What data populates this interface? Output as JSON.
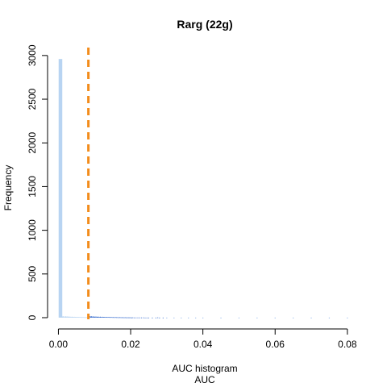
{
  "chart_data": {
    "type": "bar",
    "title": "Rarg (22g)",
    "xlabel": "AUC histogram",
    "xlabel2": "AUC",
    "ylabel": "Frequency",
    "xlim": [
      -0.003,
      0.0845
    ],
    "ylim": [
      0,
      3100
    ],
    "x_ticks": [
      0.0,
      0.02,
      0.04,
      0.06,
      0.08
    ],
    "x_tick_labels": [
      "0.00",
      "0.02",
      "0.04",
      "0.06",
      "0.08"
    ],
    "y_ticks": [
      0,
      500,
      1000,
      1500,
      2000,
      2500,
      3000
    ],
    "y_tick_labels": [
      "0",
      "500",
      "1000",
      "1500",
      "2000",
      "2500",
      "3000"
    ],
    "grid": false,
    "threshold": {
      "x": 0.0083,
      "color": "#f28c1c",
      "style": "dashed"
    },
    "colors": {
      "light_bar": "#b8d4f2",
      "dark_bar": "#3a6fd0",
      "low_bar": "#7aa6e6"
    },
    "bin_width": 0.00025,
    "bins": [
      [
        0.0002,
        2960
      ],
      [
        0.0005,
        15
      ],
      [
        0.0008,
        18
      ],
      [
        0.0011,
        14
      ],
      [
        0.0014,
        16
      ],
      [
        0.0017,
        12
      ],
      [
        0.002,
        15
      ],
      [
        0.0023,
        13
      ],
      [
        0.0026,
        14
      ],
      [
        0.0029,
        11
      ],
      [
        0.0032,
        12
      ],
      [
        0.0035,
        10
      ],
      [
        0.0038,
        11
      ],
      [
        0.0041,
        9
      ],
      [
        0.0044,
        10
      ],
      [
        0.0047,
        8
      ],
      [
        0.005,
        9
      ],
      [
        0.0053,
        8
      ],
      [
        0.0056,
        7
      ],
      [
        0.0059,
        8
      ],
      [
        0.0062,
        7
      ],
      [
        0.0065,
        6
      ],
      [
        0.0068,
        7
      ],
      [
        0.0071,
        6
      ],
      [
        0.0074,
        5
      ],
      [
        0.0077,
        6
      ],
      [
        0.008,
        5
      ],
      [
        0.0086,
        18
      ],
      [
        0.0089,
        14
      ],
      [
        0.0092,
        16
      ],
      [
        0.0095,
        12
      ],
      [
        0.0098,
        14
      ],
      [
        0.0101,
        11
      ],
      [
        0.0104,
        13
      ],
      [
        0.0107,
        10
      ],
      [
        0.011,
        12
      ],
      [
        0.0113,
        9
      ],
      [
        0.0116,
        11
      ],
      [
        0.0119,
        8
      ],
      [
        0.0122,
        10
      ],
      [
        0.0125,
        8
      ],
      [
        0.0128,
        9
      ],
      [
        0.0131,
        7
      ],
      [
        0.0134,
        8
      ],
      [
        0.0137,
        7
      ],
      [
        0.014,
        8
      ],
      [
        0.0143,
        6
      ],
      [
        0.0146,
        7
      ],
      [
        0.0149,
        6
      ],
      [
        0.0152,
        6
      ],
      [
        0.0155,
        5
      ],
      [
        0.0158,
        6
      ],
      [
        0.0161,
        5
      ],
      [
        0.0164,
        5
      ],
      [
        0.0167,
        4
      ],
      [
        0.017,
        5
      ],
      [
        0.0173,
        4
      ],
      [
        0.0176,
        4
      ],
      [
        0.0179,
        4
      ],
      [
        0.0182,
        3
      ],
      [
        0.0185,
        4
      ],
      [
        0.0188,
        3
      ],
      [
        0.0191,
        3
      ],
      [
        0.0194,
        3
      ],
      [
        0.0197,
        3
      ],
      [
        0.02,
        3
      ],
      [
        0.0203,
        2
      ],
      [
        0.0206,
        3
      ],
      [
        0.021,
        2
      ],
      [
        0.0215,
        2
      ],
      [
        0.022,
        2
      ],
      [
        0.0225,
        2
      ],
      [
        0.023,
        2
      ],
      [
        0.0235,
        2
      ],
      [
        0.024,
        1
      ],
      [
        0.0245,
        1
      ],
      [
        0.025,
        1
      ],
      [
        0.026,
        1
      ],
      [
        0.027,
        1
      ],
      [
        0.0275,
        3
      ],
      [
        0.028,
        1
      ],
      [
        0.029,
        1
      ],
      [
        0.03,
        1
      ],
      [
        0.032,
        1
      ],
      [
        0.034,
        1
      ],
      [
        0.036,
        1
      ],
      [
        0.038,
        1
      ],
      [
        0.04,
        1
      ],
      [
        0.045,
        1
      ],
      [
        0.05,
        1
      ],
      [
        0.055,
        1
      ],
      [
        0.06,
        1
      ],
      [
        0.065,
        1
      ],
      [
        0.07,
        1
      ],
      [
        0.075,
        1
      ],
      [
        0.08,
        1
      ]
    ]
  }
}
